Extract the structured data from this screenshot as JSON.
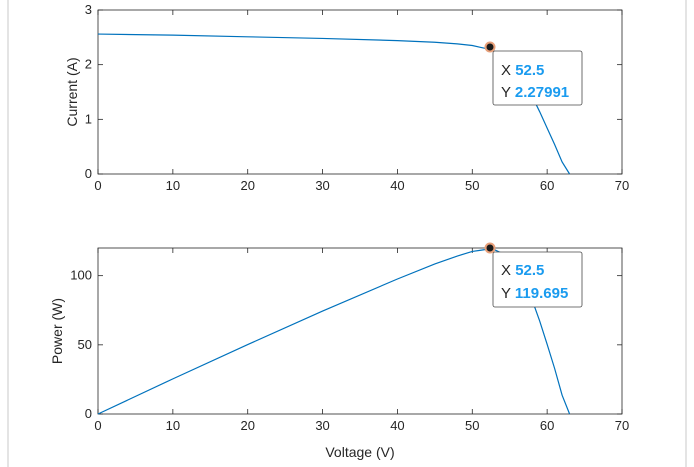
{
  "chart_data": [
    {
      "type": "line",
      "xlabel": "",
      "ylabel": "Current (A)",
      "xlim": [
        0,
        70
      ],
      "ylim": [
        0,
        3
      ],
      "x_ticks": [
        0,
        10,
        20,
        30,
        40,
        50,
        60,
        70
      ],
      "y_ticks": [
        0,
        1,
        2,
        3
      ],
      "grid": false,
      "series": [
        {
          "x": [
            0,
            10,
            20,
            30,
            40,
            45,
            48,
            50,
            51,
            52,
            52.5,
            53,
            54,
            55,
            56,
            57,
            58,
            59,
            60,
            61,
            62,
            63
          ],
          "y": [
            2.56,
            2.54,
            2.51,
            2.48,
            2.44,
            2.41,
            2.38,
            2.35,
            2.32,
            2.29,
            2.27991,
            2.24,
            2.15,
            2.02,
            1.86,
            1.66,
            1.42,
            1.14,
            0.84,
            0.54,
            0.22,
            0
          ]
        }
      ],
      "datatip": {
        "x_label": "X",
        "x_value": "52.5",
        "y_label": "Y",
        "y_value": "2.27991"
      }
    },
    {
      "type": "line",
      "xlabel": "Voltage (V)",
      "ylabel": "Power (W)",
      "xlim": [
        0,
        70
      ],
      "ylim": [
        0,
        120
      ],
      "x_ticks": [
        0,
        10,
        20,
        30,
        40,
        50,
        60,
        70
      ],
      "y_ticks": [
        0,
        50,
        100
      ],
      "grid": false,
      "series": [
        {
          "x": [
            0,
            10,
            20,
            30,
            40,
            45,
            48,
            50,
            51,
            52,
            52.5,
            53,
            54,
            55,
            56,
            57,
            58,
            59,
            60,
            61,
            62,
            63
          ],
          "y": [
            0,
            25.4,
            50.2,
            74.4,
            97.6,
            108.5,
            114.2,
            117.5,
            118.3,
            119.1,
            119.695,
            118.7,
            116.1,
            111.1,
            104.2,
            94.6,
            82.4,
            67.3,
            50.4,
            32.9,
            13.6,
            0
          ]
        }
      ],
      "datatip": {
        "x_label": "X",
        "x_value": "52.5",
        "y_label": "Y",
        "y_value": "119.695"
      }
    }
  ],
  "colors": {
    "line": "#0072bd",
    "axis": "#262626",
    "datatip_value": "#1a9bef",
    "marker": "#d9825b"
  }
}
